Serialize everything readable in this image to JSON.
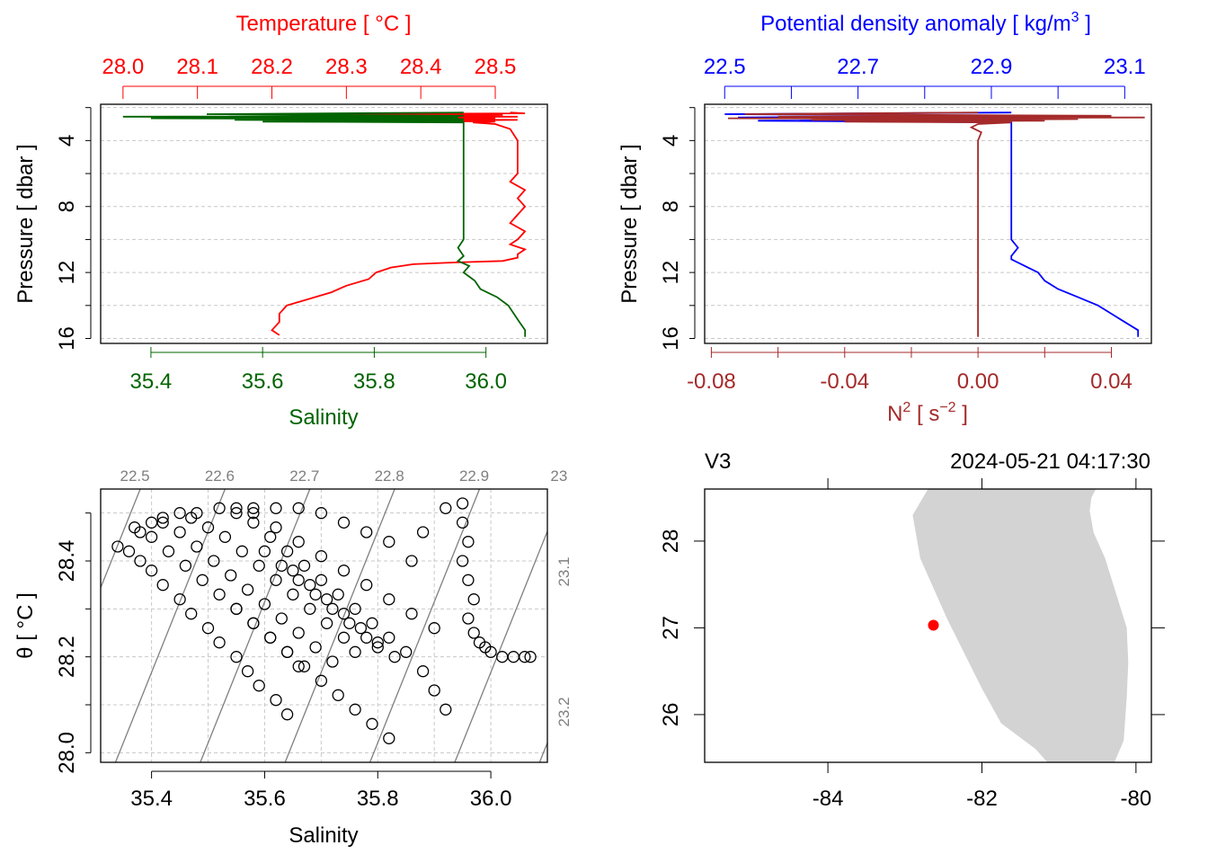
{
  "chart_data": [
    {
      "type": "line",
      "panel": "top-left",
      "title": "",
      "x_top_label": "Temperature [ °C ]",
      "x_top_ticks": [
        "28.0",
        "28.1",
        "28.2",
        "28.3",
        "28.4",
        "28.5"
      ],
      "x_top_range": [
        27.97,
        28.57
      ],
      "x_bottom_label": "Salinity",
      "x_bottom_ticks": [
        "35.4",
        "35.6",
        "35.8",
        "36.0"
      ],
      "x_bottom_range": [
        35.31,
        36.11
      ],
      "y_label": "Pressure [ dbar ]",
      "y_ticks": [
        "4",
        "8",
        "12",
        "16"
      ],
      "y_range": [
        1.8,
        16.3
      ],
      "y_reversed": true,
      "grid": true,
      "colors": {
        "temperature": "#ff0000",
        "salinity": "#006400"
      },
      "series": [
        {
          "name": "Temperature",
          "color": "#ff0000",
          "p": [
            2.3,
            2.35,
            2.4,
            2.45,
            2.5,
            2.55,
            2.6,
            2.65,
            2.7,
            2.75,
            2.8,
            2.85,
            2.9,
            3.0,
            3.3,
            4.0,
            5.0,
            6.0,
            6.5,
            7.0,
            7.5,
            8.0,
            8.5,
            9.0,
            9.5,
            10.0,
            10.3,
            10.6,
            10.9,
            11.1,
            11.3,
            11.4,
            11.5,
            11.7,
            12.0,
            12.4,
            12.8,
            13.2,
            13.6,
            14.0,
            14.5,
            15.0,
            15.5,
            15.8
          ],
          "t": [
            28.52,
            28.54,
            28.2,
            28.51,
            28.33,
            28.53,
            28.3,
            28.5,
            28.42,
            28.53,
            28.39,
            28.5,
            28.47,
            28.5,
            28.52,
            28.53,
            28.53,
            28.53,
            28.52,
            28.54,
            28.53,
            28.54,
            28.53,
            28.52,
            28.54,
            28.53,
            28.52,
            28.54,
            28.53,
            28.53,
            28.51,
            28.44,
            28.39,
            28.36,
            28.34,
            28.33,
            28.3,
            28.28,
            28.25,
            28.22,
            28.21,
            28.21,
            28.2,
            28.21
          ]
        },
        {
          "name": "Salinity",
          "color": "#006400",
          "p": [
            2.3,
            2.4,
            2.5,
            2.55,
            2.6,
            2.65,
            2.7,
            2.75,
            2.8,
            2.85,
            2.9,
            3.0,
            4.0,
            6.0,
            8.0,
            9.0,
            10.0,
            10.5,
            11.0,
            11.3,
            11.6,
            12.0,
            12.5,
            13.0,
            13.5,
            14.0,
            14.5,
            15.0,
            15.5,
            15.9
          ],
          "s": [
            35.96,
            35.5,
            35.96,
            35.35,
            35.95,
            35.4,
            35.96,
            35.55,
            35.96,
            35.6,
            35.96,
            35.96,
            35.96,
            35.96,
            35.96,
            35.96,
            35.96,
            35.95,
            35.96,
            35.95,
            35.97,
            35.96,
            35.98,
            35.99,
            36.02,
            36.04,
            36.05,
            36.06,
            36.07,
            36.07
          ]
        }
      ]
    },
    {
      "type": "line",
      "panel": "top-right",
      "title": "",
      "x_top_label": "Potential density anomaly [ kg/m",
      "x_top_label_sup": "3",
      "x_top_label_end": " ]",
      "x_top_ticks": [
        "22.5",
        "22.7",
        "22.9",
        "23.1"
      ],
      "x_top_range": [
        22.47,
        23.14
      ],
      "x_bottom_label": "N",
      "x_bottom_label_sup": "2",
      "x_bottom_label_mid": " [ s",
      "x_bottom_label_sup2": "−2",
      "x_bottom_label_end": " ]",
      "x_bottom_ticks": [
        "-0.08",
        "-0.04",
        "0.00",
        "0.04"
      ],
      "x_bottom_range": [
        -0.082,
        0.052
      ],
      "y_label": "Pressure [ dbar ]",
      "y_ticks": [
        "4",
        "8",
        "12",
        "16"
      ],
      "y_range": [
        1.8,
        16.3
      ],
      "y_reversed": true,
      "grid": true,
      "colors": {
        "density": "#0000ff",
        "n2": "#a52a2a"
      },
      "series": [
        {
          "name": "Potential density anomaly",
          "color": "#0000ff",
          "p": [
            2.3,
            2.4,
            2.5,
            2.6,
            2.7,
            2.8,
            2.9,
            3.0,
            4.0,
            6.0,
            8.0,
            9.0,
            10.0,
            10.5,
            11.0,
            11.2,
            11.6,
            12.0,
            12.5,
            13.0,
            13.5,
            14.0,
            14.5,
            15.0,
            15.5,
            15.9
          ],
          "d": [
            22.93,
            22.5,
            22.93,
            22.52,
            22.92,
            22.55,
            22.93,
            22.93,
            22.93,
            22.93,
            22.93,
            22.93,
            22.93,
            22.94,
            22.93,
            22.93,
            22.95,
            22.97,
            22.98,
            23.0,
            23.03,
            23.06,
            23.08,
            23.1,
            23.12,
            23.12
          ]
        },
        {
          "name": "N2",
          "color": "#a52a2a",
          "p": [
            2.3,
            2.4,
            2.5,
            2.55,
            2.6,
            2.65,
            2.7,
            2.75,
            2.8,
            2.85,
            2.9,
            3.0,
            3.2,
            3.5,
            4.0,
            6.0,
            8.0,
            10.0,
            12.0,
            14.0,
            15.5,
            15.9
          ],
          "n": [
            0.0,
            -0.07,
            0.04,
            -0.06,
            0.05,
            -0.075,
            0.03,
            -0.05,
            0.02,
            -0.04,
            0.01,
            0.0,
            -0.002,
            0.001,
            0.0,
            0.0,
            0.0,
            0.0,
            0.0,
            0.0,
            0.0,
            0.0
          ]
        }
      ]
    },
    {
      "type": "scatter",
      "panel": "bottom-left",
      "title": "",
      "xlabel": "Salinity",
      "ylabel": "θ [ °C ]",
      "x_ticks": [
        "35.4",
        "35.6",
        "35.8",
        "36.0"
      ],
      "y_ticks": [
        "28.0",
        "28.2",
        "28.4"
      ],
      "xlim": [
        35.31,
        36.1
      ],
      "ylim": [
        27.98,
        28.55
      ],
      "grid": true,
      "isopycnal_labels_top": [
        "22.5",
        "22.6",
        "22.7",
        "22.8",
        "22.9",
        "23"
      ],
      "isopycnal_labels_right": [
        "23.1",
        "23.2"
      ],
      "isopycnal_top_s": [
        35.38,
        35.53,
        35.68,
        35.83,
        35.98,
        36.13
      ],
      "isopycnal_slope": 0.34,
      "points_s": [
        35.34,
        35.36,
        35.38,
        35.4,
        35.42,
        35.45,
        35.47,
        35.5,
        35.52,
        35.55,
        35.57,
        35.59,
        35.62,
        35.64,
        35.37,
        35.4,
        35.43,
        35.46,
        35.49,
        35.52,
        35.55,
        35.58,
        35.61,
        35.64,
        35.66,
        35.42,
        35.45,
        35.48,
        35.51,
        35.54,
        35.57,
        35.6,
        35.63,
        35.66,
        35.69,
        35.72,
        35.47,
        35.5,
        35.53,
        35.56,
        35.59,
        35.62,
        35.65,
        35.68,
        35.71,
        35.74,
        35.76,
        35.55,
        35.58,
        35.61,
        35.64,
        35.67,
        35.7,
        35.73,
        35.76,
        35.79,
        35.82,
        35.85,
        35.88,
        35.9,
        35.92,
        35.58,
        35.62,
        35.66,
        35.7,
        35.74,
        35.78,
        35.82,
        35.86,
        35.9,
        35.38,
        35.4,
        35.42,
        35.45,
        35.48,
        35.52,
        35.55,
        35.58,
        35.62,
        35.66,
        35.7,
        35.74,
        35.78,
        35.82,
        35.86,
        35.88,
        35.92,
        35.95,
        35.95,
        35.96,
        35.95,
        35.96,
        35.97,
        35.96,
        35.97,
        35.98,
        35.99,
        36.0,
        36.02,
        36.04,
        36.06,
        36.07,
        35.6,
        35.63,
        35.66,
        35.69,
        35.72,
        35.75,
        35.78,
        35.8,
        35.65,
        35.68,
        35.71,
        35.74,
        35.77,
        35.8,
        35.83,
        35.55,
        35.58,
        35.61,
        35.64,
        35.67,
        35.7,
        35.73,
        35.76,
        35.79,
        35.82
      ],
      "points_t": [
        28.43,
        28.42,
        28.4,
        28.38,
        28.35,
        28.32,
        28.29,
        28.26,
        28.23,
        28.2,
        28.17,
        28.14,
        28.11,
        28.08,
        28.47,
        28.45,
        28.42,
        28.39,
        28.36,
        28.33,
        28.3,
        28.27,
        28.24,
        28.21,
        28.18,
        28.48,
        28.46,
        28.43,
        28.4,
        28.37,
        28.34,
        28.31,
        28.28,
        28.25,
        28.22,
        28.19,
        28.49,
        28.47,
        28.45,
        28.42,
        28.39,
        28.36,
        28.33,
        28.3,
        28.27,
        28.24,
        28.21,
        28.5,
        28.48,
        28.45,
        28.42,
        28.39,
        28.36,
        28.33,
        28.3,
        28.27,
        28.24,
        28.21,
        28.17,
        28.13,
        28.09,
        28.5,
        28.47,
        28.44,
        28.41,
        28.38,
        28.35,
        28.32,
        28.29,
        28.26,
        28.46,
        28.48,
        28.49,
        28.5,
        28.5,
        28.51,
        28.51,
        28.51,
        28.51,
        28.51,
        28.5,
        28.48,
        28.46,
        28.44,
        28.4,
        28.46,
        28.51,
        28.52,
        28.48,
        28.44,
        28.4,
        28.36,
        28.32,
        28.28,
        28.25,
        28.23,
        28.22,
        28.21,
        28.2,
        28.2,
        28.2,
        28.2,
        28.42,
        28.39,
        28.36,
        28.33,
        28.3,
        28.27,
        28.24,
        28.22,
        28.38,
        28.35,
        28.32,
        28.29,
        28.26,
        28.23,
        28.2,
        28.3,
        28.27,
        28.24,
        28.21,
        28.18,
        28.15,
        28.12,
        28.09,
        28.06,
        28.03
      ]
    },
    {
      "type": "map",
      "panel": "bottom-right",
      "title_left": "V3",
      "title_right": "2024-05-21 04:17:30",
      "x_ticks": [
        "-84",
        "-82",
        "-80"
      ],
      "y_ticks": [
        "26",
        "27",
        "28"
      ],
      "xlim": [
        -85.6,
        -79.8
      ],
      "ylim": [
        25.45,
        28.6
      ],
      "land_color": "#d3d3d3",
      "station_color": "#ff0000",
      "station": {
        "lon": -82.63,
        "lat": 27.03
      },
      "coastline_lon": [
        -82.7,
        -82.9,
        -82.8,
        -82.45,
        -82.0,
        -81.75,
        -81.3,
        -81.15,
        -80.28,
        -80.16,
        -80.12,
        -80.1,
        -80.12,
        -80.4,
        -80.55,
        -80.6,
        -80.58,
        -80.52
      ],
      "coastline_lat": [
        28.6,
        28.3,
        27.8,
        27.1,
        26.3,
        25.9,
        25.6,
        25.45,
        25.45,
        25.7,
        26.2,
        26.6,
        27.0,
        27.8,
        28.1,
        28.35,
        28.5,
        28.6
      ]
    }
  ]
}
